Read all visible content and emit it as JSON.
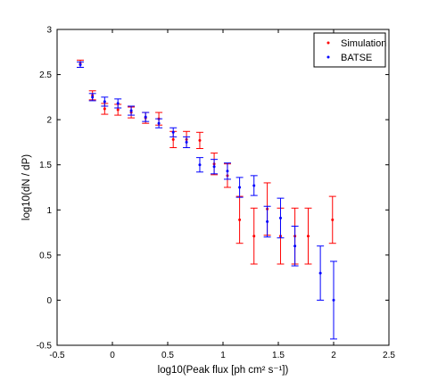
{
  "chart_data": {
    "type": "scatter",
    "title": "",
    "xlabel": "log10(Peak flux [ph cm² s⁻¹])",
    "ylabel": "log10(dN / dP)",
    "xlim": [
      -0.5,
      2.5
    ],
    "ylim": [
      -0.5,
      3
    ],
    "xticks": [
      "-0.5",
      "0",
      "0.5",
      "1",
      "1.5",
      "2",
      "2.5"
    ],
    "yticks": [
      "-0.5",
      "0",
      "0.5",
      "1",
      "1.5",
      "2",
      "2.5",
      "3"
    ],
    "grid": false,
    "legend": {
      "placement": "top-right",
      "entries": [
        "Simulation",
        "BATSE"
      ]
    },
    "series": [
      {
        "name": "Simulation",
        "color": "#ff0000",
        "marker": "dot",
        "points": [
          {
            "x": -0.29,
            "y": 2.62,
            "err_low": 0.04,
            "err_high": 0.04
          },
          {
            "x": -0.18,
            "y": 2.27,
            "err_low": 0.05,
            "err_high": 0.05
          },
          {
            "x": -0.07,
            "y": 2.12,
            "err_low": 0.06,
            "err_high": 0.06
          },
          {
            "x": 0.05,
            "y": 2.11,
            "err_low": 0.06,
            "err_high": 0.06
          },
          {
            "x": 0.17,
            "y": 2.08,
            "err_low": 0.06,
            "err_high": 0.06
          },
          {
            "x": 0.3,
            "y": 2.02,
            "err_low": 0.06,
            "err_high": 0.06
          },
          {
            "x": 0.42,
            "y": 2.01,
            "err_low": 0.07,
            "err_high": 0.07
          },
          {
            "x": 0.55,
            "y": 1.78,
            "err_low": 0.09,
            "err_high": 0.09
          },
          {
            "x": 0.67,
            "y": 1.78,
            "err_low": 0.09,
            "err_high": 0.09
          },
          {
            "x": 0.79,
            "y": 1.77,
            "err_low": 0.09,
            "err_high": 0.09
          },
          {
            "x": 0.92,
            "y": 1.51,
            "err_low": 0.12,
            "err_high": 0.12
          },
          {
            "x": 1.04,
            "y": 1.38,
            "err_low": 0.13,
            "err_high": 0.13
          },
          {
            "x": 1.15,
            "y": 0.89,
            "err_low": 0.26,
            "err_high": 0.26
          },
          {
            "x": 1.28,
            "y": 0.71,
            "err_low": 0.31,
            "err_high": 0.31
          },
          {
            "x": 1.4,
            "y": 1.01,
            "err_low": 0.29,
            "err_high": 0.29
          },
          {
            "x": 1.52,
            "y": 0.71,
            "err_low": 0.31,
            "err_high": 0.31
          },
          {
            "x": 1.65,
            "y": 0.71,
            "err_low": 0.31,
            "err_high": 0.31
          },
          {
            "x": 1.77,
            "y": 0.71,
            "err_low": 0.31,
            "err_high": 0.31
          },
          {
            "x": 1.99,
            "y": 0.89,
            "err_low": 0.26,
            "err_high": 0.26
          }
        ]
      },
      {
        "name": "BATSE",
        "color": "#0000ff",
        "marker": "dot",
        "points": [
          {
            "x": -0.29,
            "y": 2.61,
            "err_low": 0.03,
            "err_high": 0.03
          },
          {
            "x": -0.18,
            "y": 2.25,
            "err_low": 0.04,
            "err_high": 0.04
          },
          {
            "x": -0.07,
            "y": 2.2,
            "err_low": 0.05,
            "err_high": 0.05
          },
          {
            "x": 0.05,
            "y": 2.18,
            "err_low": 0.05,
            "err_high": 0.05
          },
          {
            "x": 0.17,
            "y": 2.1,
            "err_low": 0.05,
            "err_high": 0.05
          },
          {
            "x": 0.3,
            "y": 2.03,
            "err_low": 0.05,
            "err_high": 0.05
          },
          {
            "x": 0.42,
            "y": 1.96,
            "err_low": 0.05,
            "err_high": 0.05
          },
          {
            "x": 0.55,
            "y": 1.86,
            "err_low": 0.05,
            "err_high": 0.05
          },
          {
            "x": 0.67,
            "y": 1.75,
            "err_low": 0.06,
            "err_high": 0.06
          },
          {
            "x": 0.79,
            "y": 1.5,
            "err_low": 0.08,
            "err_high": 0.08
          },
          {
            "x": 0.92,
            "y": 1.48,
            "err_low": 0.08,
            "err_high": 0.08
          },
          {
            "x": 1.04,
            "y": 1.43,
            "err_low": 0.09,
            "err_high": 0.09
          },
          {
            "x": 1.15,
            "y": 1.25,
            "err_low": 0.11,
            "err_high": 0.11
          },
          {
            "x": 1.28,
            "y": 1.27,
            "err_low": 0.11,
            "err_high": 0.11
          },
          {
            "x": 1.4,
            "y": 0.87,
            "err_low": 0.17,
            "err_high": 0.17
          },
          {
            "x": 1.52,
            "y": 0.91,
            "err_low": 0.22,
            "err_high": 0.22
          },
          {
            "x": 1.65,
            "y": 0.6,
            "err_low": 0.22,
            "err_high": 0.22
          },
          {
            "x": 1.88,
            "y": 0.3,
            "err_low": 0.3,
            "err_high": 0.3
          },
          {
            "x": 2.0,
            "y": 0.0,
            "err_low": 0.43,
            "err_high": 0.43
          }
        ]
      }
    ]
  }
}
